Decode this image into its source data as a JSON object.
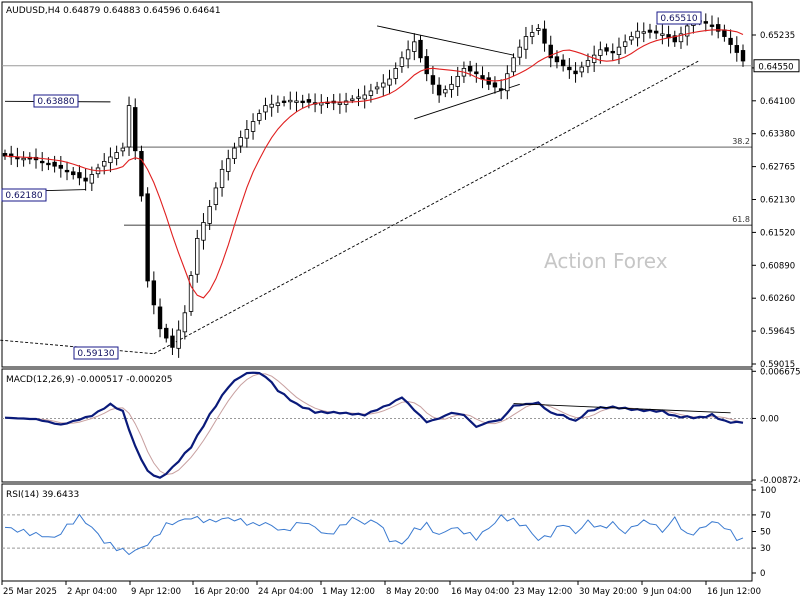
{
  "chart_data": [
    {
      "type": "candlestick",
      "symbol_header": "AUDUSD,H4",
      "ohlc_header": [
        "0.64879",
        "0.64883",
        "0.64596",
        "0.64641"
      ],
      "watermark": "Action Forex",
      "ylim": [
        0.5888,
        0.6575
      ],
      "y_ticks": [
        "0.65235",
        "0.64550",
        "0.64100",
        "0.63380",
        "0.62765",
        "0.62130",
        "0.61520",
        "0.60890",
        "0.60260",
        "0.59645",
        "0.59015"
      ],
      "current_price_label": "0.64550",
      "x_ticks": [
        "25 Mar 2025",
        "2 Apr 04:00",
        "9 Apr 12:00",
        "16 Apr 20:00",
        "24 Apr 04:00",
        "1 May 12:00",
        "8 May 20:00",
        "16 May 04:00",
        "23 May 12:00",
        "30 May 20:00",
        "9 Jun 04:00",
        "16 Jun 12:00"
      ],
      "candle_count": 120,
      "close_path": [
        [
          0,
          0.6285
        ],
        [
          5,
          0.6278
        ],
        [
          9,
          0.6262
        ],
        [
          13,
          0.6238
        ],
        [
          16,
          0.6275
        ],
        [
          19,
          0.63
        ],
        [
          20,
          0.638
        ],
        [
          22,
          0.621
        ],
        [
          23,
          0.605
        ],
        [
          25,
          0.596
        ],
        [
          27,
          0.5925
        ],
        [
          29,
          0.599
        ],
        [
          31,
          0.613
        ],
        [
          33,
          0.619
        ],
        [
          35,
          0.626
        ],
        [
          38,
          0.632
        ],
        [
          42,
          0.638
        ],
        [
          46,
          0.639
        ],
        [
          50,
          0.6385
        ],
        [
          54,
          0.6385
        ],
        [
          58,
          0.64
        ],
        [
          62,
          0.643
        ],
        [
          64,
          0.647
        ],
        [
          66,
          0.65
        ],
        [
          68,
          0.644
        ],
        [
          70,
          0.64
        ],
        [
          72,
          0.642
        ],
        [
          74,
          0.645
        ],
        [
          76,
          0.644
        ],
        [
          78,
          0.642
        ],
        [
          80,
          0.641
        ],
        [
          82,
          0.647
        ],
        [
          84,
          0.651
        ],
        [
          86,
          0.6525
        ],
        [
          88,
          0.647
        ],
        [
          90,
          0.6455
        ],
        [
          92,
          0.644
        ],
        [
          94,
          0.6465
        ],
        [
          96,
          0.6485
        ],
        [
          98,
          0.648
        ],
        [
          100,
          0.65
        ],
        [
          102,
          0.652
        ],
        [
          104,
          0.6518
        ],
        [
          106,
          0.6515
        ],
        [
          108,
          0.65
        ],
        [
          110,
          0.653
        ],
        [
          112,
          0.654
        ],
        [
          114,
          0.653
        ],
        [
          116,
          0.651
        ],
        [
          118,
          0.648
        ],
        [
          119,
          0.6464
        ]
      ],
      "moving_average_color": "#e02020",
      "price_labels": [
        "0.63880",
        "0.62180",
        "0.59130",
        "0.65510"
      ],
      "fib_levels": [
        {
          "label": "38.2",
          "value": 0.6302
        },
        {
          "label": "61.8",
          "value": 0.6155
        }
      ],
      "horizontal_level": 0.6455,
      "trendlines": [
        {
          "from": [
            -8,
            0.5946
          ],
          "to": [
            24,
            0.5913
          ],
          "style": "dashed"
        },
        {
          "from": [
            24,
            0.5913
          ],
          "to": [
            112,
            0.6465
          ],
          "style": "dashed"
        },
        {
          "from": [
            60,
            0.653
          ],
          "to": [
            82,
            0.6475
          ],
          "style": "solid"
        },
        {
          "from": [
            66,
            0.6355
          ],
          "to": [
            83,
            0.642
          ],
          "style": "solid"
        },
        {
          "from": [
            0,
            0.6388
          ],
          "to": [
            17,
            0.6387
          ],
          "style": "solid"
        },
        {
          "from": [
            0,
            0.6218
          ],
          "to": [
            13,
            0.6222
          ],
          "style": "solid"
        }
      ]
    },
    {
      "type": "line",
      "indicator": "MACD(12,26,9)",
      "header_values": [
        "-0.000517",
        "-0.000205"
      ],
      "ylim": [
        -0.009,
        0.007
      ],
      "y_ticks": [
        "0.006675",
        "0.00",
        "-0.008724"
      ],
      "macd_color": "#0a1a7a",
      "signal_color": "#c8a0a0",
      "macd_path": [
        [
          0,
          0.0001
        ],
        [
          5,
          -0.0001
        ],
        [
          9,
          -0.0009
        ],
        [
          11,
          -0.0004
        ],
        [
          14,
          0.0004
        ],
        [
          17,
          0.002
        ],
        [
          19,
          0.001
        ],
        [
          21,
          -0.004
        ],
        [
          23,
          -0.0075
        ],
        [
          25,
          -0.0085
        ],
        [
          27,
          -0.007
        ],
        [
          30,
          -0.004
        ],
        [
          33,
          0.0005
        ],
        [
          36,
          0.0045
        ],
        [
          38,
          0.006
        ],
        [
          40,
          0.0066
        ],
        [
          42,
          0.006
        ],
        [
          44,
          0.004
        ],
        [
          47,
          0.002
        ],
        [
          50,
          0.0009
        ],
        [
          54,
          0.0008
        ],
        [
          58,
          0.0005
        ],
        [
          62,
          0.002
        ],
        [
          64,
          0.003
        ],
        [
          66,
          0.0012
        ],
        [
          68,
          -0.0005
        ],
        [
          70,
          0.0
        ],
        [
          72,
          0.0008
        ],
        [
          74,
          0.0005
        ],
        [
          76,
          -0.0012
        ],
        [
          78,
          -0.0005
        ],
        [
          80,
          -0.0002
        ],
        [
          82,
          0.0018
        ],
        [
          84,
          0.002
        ],
        [
          86,
          0.0022
        ],
        [
          88,
          0.0008
        ],
        [
          90,
          0.0004
        ],
        [
          92,
          -0.0004
        ],
        [
          94,
          0.001
        ],
        [
          96,
          0.0015
        ],
        [
          98,
          0.0016
        ],
        [
          100,
          0.0014
        ],
        [
          102,
          0.0012
        ],
        [
          104,
          0.0011
        ],
        [
          106,
          0.001
        ],
        [
          108,
          0.0003
        ],
        [
          110,
          0.0002
        ],
        [
          112,
          0.0001
        ],
        [
          114,
          0.0005
        ],
        [
          116,
          -0.0004
        ],
        [
          118,
          -0.0006
        ],
        [
          119,
          -0.0005
        ]
      ],
      "trendline": {
        "from": [
          82,
          0.0021
        ],
        "to": [
          117,
          0.0008
        ],
        "style": "solid"
      }
    },
    {
      "type": "line",
      "indicator": "RSI(14)",
      "header_value": "39.6433",
      "ylim": [
        0,
        100
      ],
      "y_ticks": [
        "100",
        "70",
        "50",
        "30",
        "0"
      ],
      "levels": [
        70,
        30
      ],
      "color": "#3a7ad0",
      "rsi_path": [
        [
          0,
          55
        ],
        [
          4,
          48
        ],
        [
          8,
          42
        ],
        [
          10,
          56
        ],
        [
          12,
          68
        ],
        [
          14,
          55
        ],
        [
          16,
          38
        ],
        [
          18,
          30
        ],
        [
          20,
          24
        ],
        [
          22,
          30
        ],
        [
          24,
          41
        ],
        [
          26,
          58
        ],
        [
          28,
          62
        ],
        [
          30,
          67
        ],
        [
          33,
          62
        ],
        [
          36,
          66
        ],
        [
          38,
          63
        ],
        [
          40,
          58
        ],
        [
          42,
          60
        ],
        [
          45,
          50
        ],
        [
          48,
          62
        ],
        [
          50,
          55
        ],
        [
          52,
          45
        ],
        [
          54,
          55
        ],
        [
          56,
          66
        ],
        [
          58,
          60
        ],
        [
          60,
          63
        ],
        [
          62,
          40
        ],
        [
          64,
          35
        ],
        [
          66,
          52
        ],
        [
          68,
          58
        ],
        [
          70,
          45
        ],
        [
          72,
          55
        ],
        [
          74,
          50
        ],
        [
          76,
          42
        ],
        [
          78,
          54
        ],
        [
          80,
          68
        ],
        [
          82,
          63
        ],
        [
          84,
          56
        ],
        [
          86,
          40
        ],
        [
          88,
          46
        ],
        [
          90,
          60
        ],
        [
          92,
          48
        ],
        [
          94,
          62
        ],
        [
          96,
          54
        ],
        [
          98,
          60
        ],
        [
          100,
          48
        ],
        [
          102,
          60
        ],
        [
          104,
          62
        ],
        [
          106,
          50
        ],
        [
          108,
          66
        ],
        [
          110,
          45
        ],
        [
          112,
          52
        ],
        [
          114,
          62
        ],
        [
          116,
          56
        ],
        [
          118,
          42
        ],
        [
          119,
          40
        ]
      ]
    }
  ]
}
